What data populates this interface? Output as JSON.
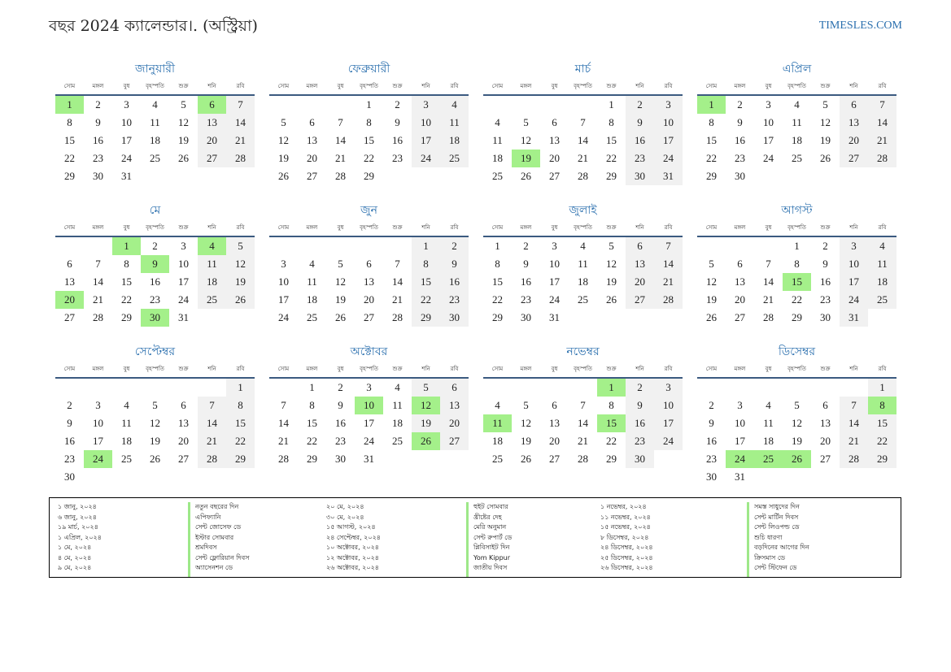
{
  "header": {
    "title": "বছর 2024 ক্যালেন্ডার।. (অস্ট্রিয়া)",
    "site": "TIMESLES.COM"
  },
  "weekdays": [
    "সোম",
    "মঙ্গল",
    "বুধ",
    "বৃহস্পতি",
    "শুক্র",
    "শনি",
    "রবি"
  ],
  "months": [
    {
      "name": "জানুয়ারী",
      "start_offset": 0,
      "days": 31,
      "holidays": [
        1,
        6
      ]
    },
    {
      "name": "ফেব্রুয়ারী",
      "start_offset": 3,
      "days": 29,
      "holidays": []
    },
    {
      "name": "মার্চ",
      "start_offset": 4,
      "days": 31,
      "holidays": [
        19
      ]
    },
    {
      "name": "এপ্রিল",
      "start_offset": 0,
      "days": 30,
      "holidays": [
        1
      ]
    },
    {
      "name": "মে",
      "start_offset": 2,
      "days": 31,
      "holidays": [
        1,
        4,
        9,
        20,
        30
      ]
    },
    {
      "name": "জুন",
      "start_offset": 5,
      "days": 30,
      "holidays": []
    },
    {
      "name": "জুলাই",
      "start_offset": 0,
      "days": 31,
      "holidays": []
    },
    {
      "name": "আগস্ট",
      "start_offset": 3,
      "days": 31,
      "holidays": [
        15
      ]
    },
    {
      "name": "সেপ্টেম্বর",
      "start_offset": 6,
      "days": 30,
      "holidays": [
        24
      ]
    },
    {
      "name": "অক্টোবর",
      "start_offset": 1,
      "days": 31,
      "holidays": [
        10,
        12,
        26
      ]
    },
    {
      "name": "নভেম্বর",
      "start_offset": 4,
      "days": 30,
      "holidays": [
        1,
        11,
        15
      ]
    },
    {
      "name": "ডিসেম্বর",
      "start_offset": 6,
      "days": 31,
      "holidays": [
        8,
        24,
        25,
        26
      ]
    }
  ],
  "legend": {
    "columns": [
      {
        "type": "date",
        "items": [
          "১ জানু, ২০২৪",
          "৬ জানু, ২০২৪",
          "১৯ মার্চ, ২০২৪",
          "১ এপ্রিল, ২০২৪",
          "১ মে, ২০২৪",
          "৪ মে, ২০২৪",
          "৯ মে, ২০২৪"
        ]
      },
      {
        "type": "name",
        "items": [
          "নতুন বছরের দিন",
          "এপিফ্যানি",
          "সেন্ট জোসেফ ডে",
          "ইস্টার সোমবার",
          "শ্রমদিবস",
          "সেন্ট ফ্লোরিয়ান দিবস",
          "অ্যাসেনশন ডে"
        ]
      },
      {
        "type": "date",
        "items": [
          "২০ মে, ২০২৪",
          "৩০ মে, ২০২৪",
          "১৫ আগস্ট, ২০২৪",
          "২৪ সেপ্টেম্বর, ২০২৪",
          "১০ অক্টোবর, ২০২৪",
          "১২ অক্টোবর, ২০২৪",
          "২৬ অক্টোবর, ২০২৪"
        ]
      },
      {
        "type": "name",
        "items": [
          "হুইট সোমবার",
          "খ্রীষ্টের দেহ",
          "মেরি অনুমান",
          "সেন্ট রুপার্ট ডে",
          "প্লিবিসাইট দিন",
          "Yom Kippur",
          "জাতীয় দিবস"
        ]
      },
      {
        "type": "date",
        "items": [
          "১ নভেম্বর, ২০২৪",
          "১১ নভেম্বর, ২০২৪",
          "১৫ নভেম্বর, ২০২৪",
          "৮ ডিসেম্বর, ২০২৪",
          "২৪ ডিসেম্বর, ২০২৪",
          "২৫ ডিসেম্বর, ২০২৪",
          "২৬ ডিসেম্বর, ২০২৪"
        ]
      },
      {
        "type": "name",
        "items": [
          "সমস্ত সাধুদের দিন",
          "সেন্ট মার্টিন দিবস",
          "সেন্ট লিওপল্ড ডে",
          "শুচি ধারণা",
          "বড়দিনের আগের দিন",
          "ক্রিসমাস ডে",
          "সেন্ট স্টিফেন ডে"
        ]
      }
    ]
  },
  "colors": {
    "holiday": "#a4f08a",
    "weekend": "#f1f1f1",
    "accent": "#2a6fae"
  }
}
